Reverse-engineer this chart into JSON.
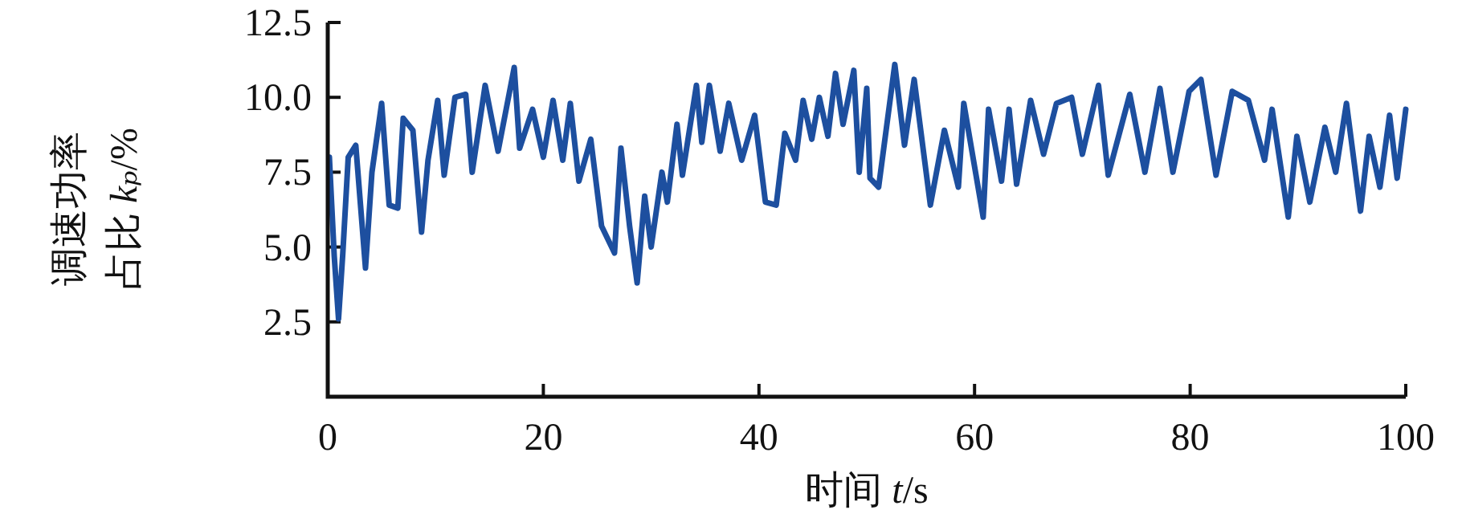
{
  "chart_data": {
    "type": "line",
    "xlabel": "时间 *t*/s",
    "ylabel": "调速功率占比 *kₚ*/%",
    "grid": false,
    "xlim": [
      0,
      100
    ],
    "ylim": [
      0,
      12.5
    ],
    "xticks": [
      0,
      20,
      40,
      60,
      80,
      100
    ],
    "yticks": [
      2.5,
      {
        "value": 5,
        "label": "5.0"
      },
      7.5,
      {
        "value": 10,
        "label": "10.0"
      },
      12.5
    ],
    "series": [
      {
        "color": "#1d4f9f",
        "x": [
          0.15,
          0.6,
          1.0,
          1.4,
          1.9,
          2.6,
          3.5,
          4.1,
          5.0,
          5.7,
          6.5,
          7.0,
          7.9,
          8.7,
          9.3,
          10.2,
          10.8,
          11.8,
          12.8,
          13.4,
          14.6,
          15.8,
          17.3,
          17.8,
          19.0,
          20.0,
          20.9,
          21.8,
          22.5,
          23.3,
          24.4,
          25.4,
          26.6,
          27.2,
          28.0,
          28.7,
          29.4,
          30.0,
          31.0,
          31.5,
          32.4,
          32.9,
          34.2,
          34.7,
          35.4,
          36.4,
          37.2,
          38.4,
          39.6,
          40.6,
          41.6,
          42.4,
          43.4,
          44.1,
          44.9,
          45.6,
          46.4,
          47.1,
          47.8,
          48.8,
          49.3,
          50.0,
          50.3,
          51.1,
          52.6,
          53.5,
          54.4,
          55.9,
          57.2,
          58.5,
          59.0,
          60.8,
          61.3,
          62.5,
          63.2,
          63.9,
          65.2,
          66.4,
          67.6,
          69.0,
          70.0,
          71.5,
          72.4,
          74.4,
          75.8,
          77.2,
          78.4,
          79.9,
          81.0,
          82.4,
          83.9,
          85.4,
          86.9,
          87.6,
          89.1,
          89.9,
          91.1,
          92.5,
          93.5,
          94.5,
          95.8,
          96.6,
          97.6,
          98.5,
          99.2,
          100
        ],
        "values": [
          8.0,
          4.7,
          2.6,
          4.8,
          8.0,
          8.4,
          4.3,
          7.5,
          9.8,
          6.4,
          6.3,
          9.3,
          8.9,
          5.5,
          7.9,
          9.9,
          7.4,
          10.0,
          10.1,
          7.5,
          10.4,
          8.2,
          11.0,
          8.3,
          9.6,
          8.0,
          9.9,
          7.9,
          9.8,
          7.2,
          8.6,
          5.7,
          4.8,
          8.3,
          5.7,
          3.8,
          6.7,
          5.0,
          7.5,
          6.5,
          9.1,
          7.4,
          10.4,
          8.5,
          10.4,
          8.2,
          9.8,
          7.9,
          9.4,
          6.5,
          6.4,
          8.8,
          7.9,
          9.9,
          8.6,
          10.0,
          8.7,
          10.8,
          9.1,
          10.9,
          7.5,
          10.3,
          7.3,
          7.0,
          11.1,
          8.4,
          10.6,
          6.4,
          8.9,
          7.0,
          9.8,
          6.0,
          9.6,
          7.2,
          9.6,
          7.1,
          9.9,
          8.1,
          9.8,
          10.0,
          8.1,
          10.4,
          7.4,
          10.1,
          7.5,
          10.3,
          7.5,
          10.2,
          10.6,
          7.4,
          10.2,
          9.9,
          7.9,
          9.6,
          6.0,
          8.7,
          6.5,
          9.0,
          7.5,
          9.8,
          6.2,
          8.7,
          7.0,
          9.4,
          7.3,
          9.6
        ]
      }
    ]
  }
}
